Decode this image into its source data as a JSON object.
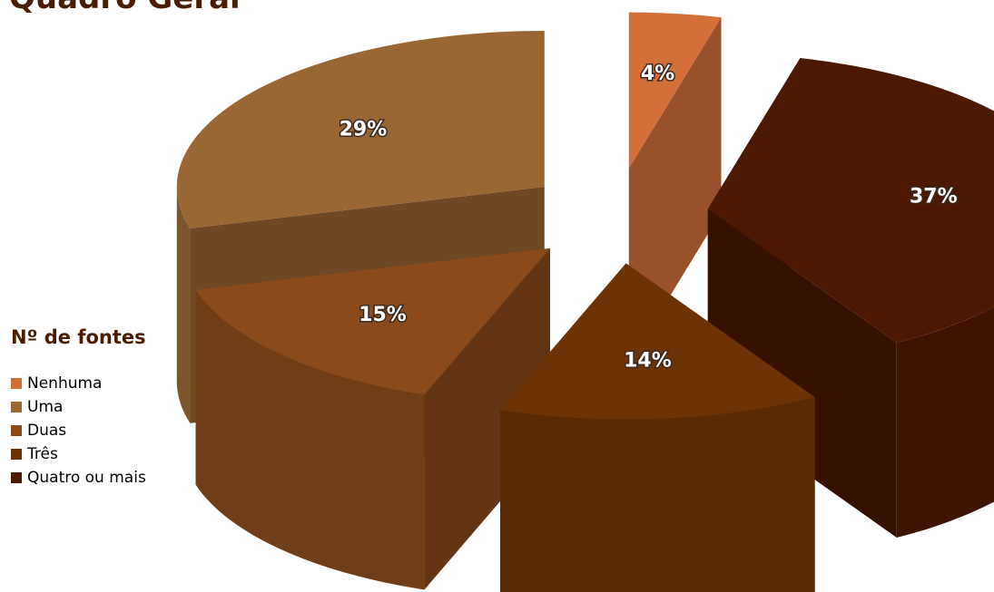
{
  "page": {
    "title": "Quadro Geral"
  },
  "chart_data": {
    "type": "pie",
    "style": "3d-exploded",
    "categories": [
      "Nenhuma",
      "Uma",
      "Duas",
      "Três",
      "Quatro ou mais"
    ],
    "values": [
      4,
      29,
      15,
      14,
      37
    ],
    "data_labels": [
      "4%",
      "29%",
      "15%",
      "14%",
      "37%"
    ],
    "colors": [
      "#d3703a",
      "#9a6634",
      "#8a4a1c",
      "#6e3305",
      "#4c1800"
    ],
    "legend": {
      "title": "Nº de fontes",
      "placement": "left"
    }
  }
}
